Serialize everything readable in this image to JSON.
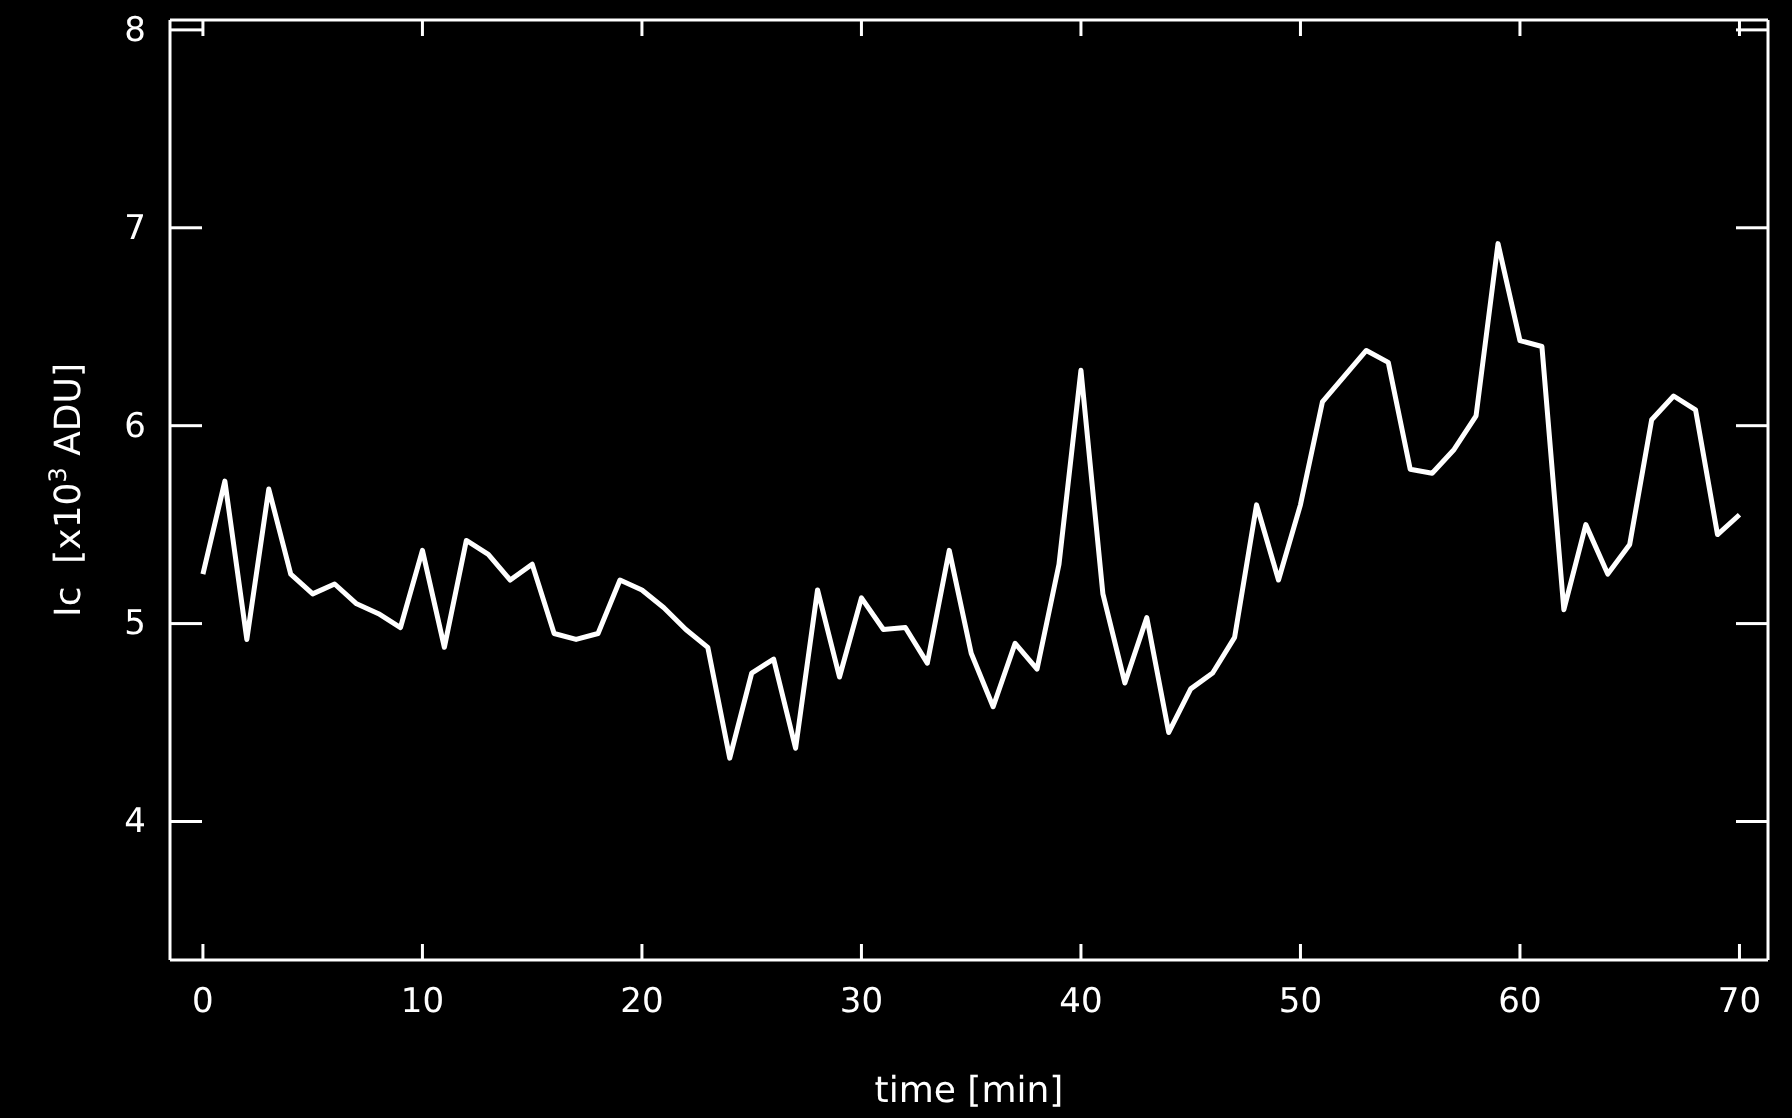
{
  "chart_data": {
    "type": "line",
    "xlabel": "time [min]",
    "ylabel": "Ic  [x10$^{3}$ ADU]",
    "x": [
      0,
      1,
      2,
      3,
      4,
      5,
      6,
      7,
      8,
      9,
      10,
      11,
      12,
      13,
      14,
      15,
      16,
      17,
      18,
      19,
      20,
      21,
      22,
      23,
      24,
      25,
      26,
      27,
      28,
      29,
      30,
      31,
      32,
      33,
      34,
      35,
      36,
      37,
      38,
      39,
      40,
      41,
      42,
      43,
      44,
      45,
      46,
      47,
      48,
      49,
      50,
      51,
      52,
      53,
      54,
      55,
      56,
      57,
      58,
      59,
      60,
      61,
      62,
      63,
      64,
      65,
      66,
      67,
      68,
      69,
      70
    ],
    "series": [
      {
        "color": "#ffffff",
        "values": [
          5.25,
          5.72,
          4.92,
          5.68,
          5.25,
          5.15,
          5.2,
          5.1,
          5.05,
          4.98,
          5.37,
          4.88,
          5.42,
          5.35,
          5.22,
          5.3,
          4.95,
          4.92,
          4.95,
          5.22,
          5.17,
          5.08,
          4.97,
          4.88,
          4.32,
          4.75,
          4.82,
          4.37,
          5.17,
          4.73,
          5.13,
          4.97,
          4.98,
          4.8,
          5.37,
          4.85,
          4.58,
          4.9,
          4.77,
          5.3,
          6.28,
          5.15,
          4.7,
          5.03,
          4.45,
          4.67,
          4.75,
          4.93,
          5.6,
          5.22,
          5.6,
          6.12,
          6.25,
          6.38,
          6.32,
          5.78,
          5.76,
          5.88,
          6.05,
          6.92,
          6.43,
          6.4,
          5.07,
          5.5,
          5.25,
          5.4,
          6.03,
          6.15,
          6.08,
          5.45,
          5.55
        ]
      }
    ],
    "xlim": [
      -1.5,
      71.3
    ],
    "ylim": [
      3.3,
      8.05
    ],
    "xticks": [
      0,
      10,
      20,
      30,
      40,
      50,
      60,
      70
    ],
    "yticks": [
      4,
      5,
      6,
      7,
      8
    ],
    "grid": false,
    "marker": "none",
    "line_style": "solid"
  }
}
